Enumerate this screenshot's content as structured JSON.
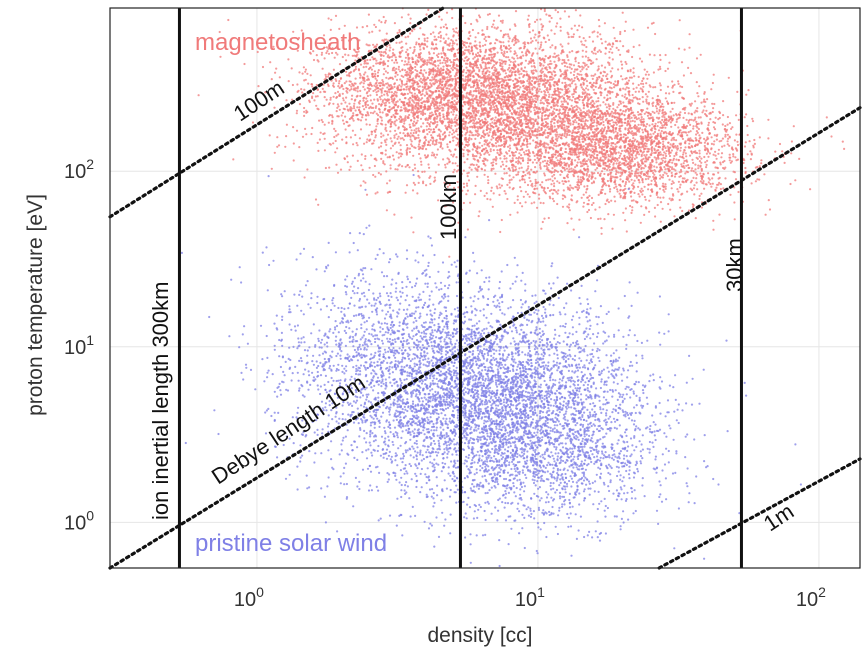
{
  "chart_data": {
    "type": "scatter",
    "xlabel": "density [cc]",
    "ylabel": "proton temperature [eV]",
    "xscale": "log",
    "yscale": "log",
    "xlim": [
      0.3,
      140
    ],
    "ylim": [
      0.55,
      850
    ],
    "grid": true,
    "x_ticks": [
      1,
      10,
      100
    ],
    "x_tick_labels": [
      {
        "base": "10",
        "exp": "0"
      },
      {
        "base": "10",
        "exp": "1"
      },
      {
        "base": "10",
        "exp": "2"
      }
    ],
    "y_ticks": [
      1,
      10,
      100
    ],
    "y_tick_labels": [
      {
        "base": "10",
        "exp": "0"
      },
      {
        "base": "10",
        "exp": "1"
      },
      {
        "base": "10",
        "exp": "2"
      }
    ],
    "colors": {
      "magnetosheath": "#f07a7a",
      "solar_wind": "#7f80e6",
      "lines": "#111111"
    },
    "series": [
      {
        "name": "magnetosheath",
        "label": "magnetosheath",
        "color": "#f07a7a",
        "clusters": [
          {
            "x_center": 7,
            "y_center": 250,
            "x_sigma_decades": 0.28,
            "y_sigma_decades": 0.22,
            "n": 4500
          },
          {
            "x_center": 20,
            "y_center": 130,
            "x_sigma_decades": 0.22,
            "y_sigma_decades": 0.16,
            "n": 2500
          },
          {
            "x_center": 3.5,
            "y_center": 300,
            "x_sigma_decades": 0.2,
            "y_sigma_decades": 0.15,
            "n": 900
          }
        ]
      },
      {
        "name": "pristine solar wind",
        "label": "pristine solar wind",
        "color": "#7f80e6",
        "clusters": [
          {
            "x_center": 7,
            "y_center": 5,
            "x_sigma_decades": 0.25,
            "y_sigma_decades": 0.28,
            "n": 4000
          },
          {
            "x_center": 3,
            "y_center": 8,
            "x_sigma_decades": 0.22,
            "y_sigma_decades": 0.3,
            "n": 1500
          },
          {
            "x_center": 12,
            "y_center": 2.5,
            "x_sigma_decades": 0.2,
            "y_sigma_decades": 0.2,
            "n": 1000
          }
        ]
      }
    ],
    "vertical_lines": [
      {
        "x": 0.53,
        "label": "ion inertial length 300km"
      },
      {
        "x": 5.3,
        "label": "100km"
      },
      {
        "x": 53,
        "label": "30km"
      }
    ],
    "diagonal_lines": [
      {
        "label": "100m",
        "points": [
          [
            0.3,
            55
          ],
          [
            4.6,
            850
          ]
        ]
      },
      {
        "label": "Debye length 10m",
        "points": [
          [
            0.3,
            0.55
          ],
          [
            140,
            230
          ]
        ]
      },
      {
        "label": "1m",
        "points": [
          [
            27,
            0.55
          ],
          [
            140,
            2.3
          ]
        ]
      }
    ]
  }
}
